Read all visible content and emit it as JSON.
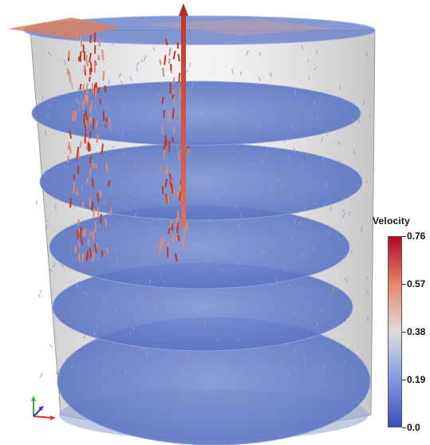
{
  "legend": {
    "title": "Velocity",
    "ticks": [
      {
        "label": "0.76",
        "value": 0.76
      },
      {
        "label": "0.57",
        "value": 0.57
      },
      {
        "label": "0.38",
        "value": 0.38
      },
      {
        "label": "0.19",
        "value": 0.19
      },
      {
        "label": "0.0",
        "value": 0.0
      }
    ],
    "range": [
      0.0,
      0.76
    ],
    "colormap": {
      "low": "#3b4cc0",
      "mid": "#dddddd",
      "high": "#b40426"
    }
  },
  "scene": {
    "object": "cylinder-with-slices",
    "slice_count": 5,
    "slice_color": "#5f7cc8",
    "cylinder_color": "#c8c8c8",
    "arrow_color_high": "#c0392b",
    "arrow_color_low": "#8aa0d8"
  },
  "axes": {
    "x_color": "#e23030",
    "y_color": "#30c030",
    "z_color": "#3030e0"
  }
}
